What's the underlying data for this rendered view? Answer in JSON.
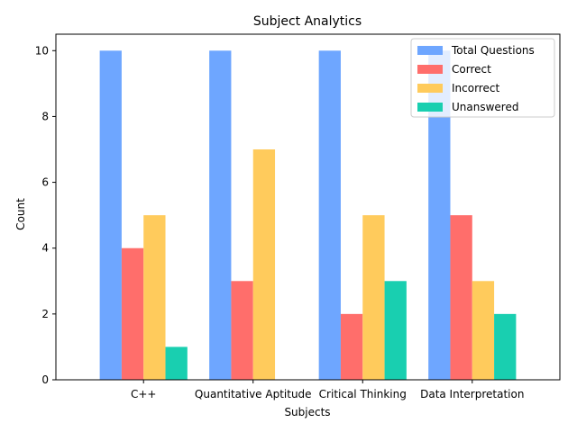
{
  "chart_data": {
    "type": "bar",
    "title": "Subject Analytics",
    "xlabel": "Subjects",
    "ylabel": "Count",
    "categories": [
      "C++",
      "Quantitative Aptitude",
      "Critical Thinking",
      "Data Interpretation"
    ],
    "ylim": [
      0,
      10.5
    ],
    "yticks": [
      0,
      2,
      4,
      6,
      8,
      10
    ],
    "grid": false,
    "legend_position": "top-right",
    "series": [
      {
        "name": "Total Questions",
        "color": "#6ea6ff",
        "values": [
          10,
          10,
          10,
          10
        ]
      },
      {
        "name": "Correct",
        "color": "#ff6e6b",
        "values": [
          4,
          3,
          2,
          5
        ]
      },
      {
        "name": "Incorrect",
        "color": "#ffcb5c",
        "values": [
          5,
          7,
          5,
          3
        ]
      },
      {
        "name": "Unanswered",
        "color": "#19cfb0",
        "values": [
          1,
          0,
          3,
          2
        ]
      }
    ]
  }
}
